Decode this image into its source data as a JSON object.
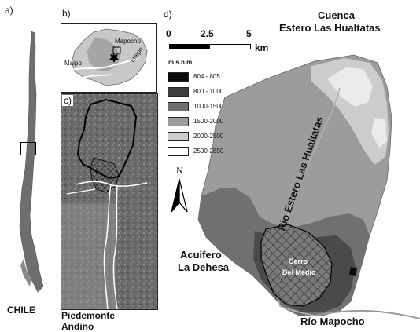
{
  "panels": {
    "a": "a)",
    "b": "b)",
    "c": "c)",
    "d": "d)"
  },
  "panel_a": {
    "country_label": "CHILE"
  },
  "panel_b": {
    "labels": [
      "Mapocho",
      "Maipo",
      "Maipo"
    ]
  },
  "panel_c": {
    "caption_line1": "Piedemonte",
    "caption_line2": "Andino"
  },
  "panel_d": {
    "title_line1": "Cuenca",
    "title_line2": "Estero Las Hualtatas",
    "scalebar": {
      "ticks": [
        "0",
        "2.5",
        "5"
      ],
      "unit": "km"
    },
    "north_label": "N",
    "legend": {
      "title": "m.s.n.m.",
      "items": [
        {
          "label": "804 - 805",
          "color": "#0a0a0a"
        },
        {
          "label": "800 - 1000",
          "color": "#3d3d3d"
        },
        {
          "label": "1000-1500",
          "color": "#6f6f6f"
        },
        {
          "label": "1500-2000",
          "color": "#9c9c9c"
        },
        {
          "label": "2000-2500",
          "color": "#cdcdcd"
        },
        {
          "label": "2500-2850",
          "color": "#ffffff"
        }
      ]
    },
    "river_label": "Rio Estero Las Hualtatas",
    "aquifer_label_line1": "Acuifero",
    "aquifer_label_line2": "La Dehesa",
    "hill_label_line1": "Cerro",
    "hill_label_line2": "Del Medio",
    "mapocho_label": "Río Mapocho"
  }
}
